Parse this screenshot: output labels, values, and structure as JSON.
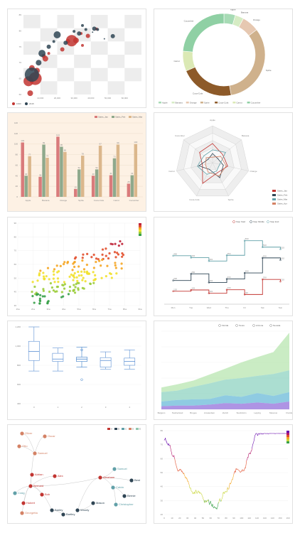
{
  "colors": {
    "red": "#c23531",
    "navy": "#2f4554",
    "teal": "#61a0a8",
    "orange": "#d48265",
    "green": "#91c7ae",
    "olive": "#749f83",
    "tan": "#ca8622",
    "sand": "#bda29a"
  },
  "charts": [
    {
      "id": "bubble",
      "chart_data": {
        "type": "scatter",
        "legend": [
          "1990",
          "2015"
        ],
        "x_ticks": [
          "10,000",
          "20,000",
          "30,000",
          "40,000",
          "50,000",
          "60,000"
        ],
        "y_ticks": [
          "60",
          "65",
          "70",
          "75",
          "80",
          "85"
        ],
        "series": [
          {
            "name": "1990",
            "points": [
              [
                28600,
                77.3,
                8
              ],
              [
                31163,
                77.4,
                4
              ],
              [
                26424,
                77.1,
                3
              ],
              [
                38225,
                79.1,
                3
              ],
              [
                43294,
                81.7,
                2
              ],
              [
                34177,
                80.0,
                2
              ],
              [
                23038,
                74.0,
                3
              ],
              [
                35000,
                75.5,
                2
              ],
              [
                13000,
                70.5,
                4
              ],
              [
                5000,
                67.0,
                4
              ],
              [
                8000,
                66.0,
                4
              ],
              [
                7000,
                63.0,
                9
              ],
              [
                3000,
                62.0,
                7
              ],
              [
                12000,
                71.5,
                3
              ],
              [
                15000,
                72.5,
                2
              ],
              [
                4000,
                57.5,
                4
              ]
            ]
          },
          {
            "name": "2015",
            "points": [
              [
                20000,
                79.5,
                5
              ],
              [
                30000,
                80.8,
                2
              ],
              [
                33000,
                80.0,
                3
              ],
              [
                37000,
                81.5,
                2
              ],
              [
                44000,
                81.5,
                2
              ],
              [
                53000,
                79.0,
                3
              ],
              [
                42000,
                81.8,
                3
              ],
              [
                48000,
                78.0,
                1
              ],
              [
                25000,
                76.5,
                3
              ],
              [
                5000,
                64.5,
                10
              ],
              [
                15000,
                75.0,
                3
              ],
              [
                11000,
                72.5,
                5
              ],
              [
                9000,
                69.0,
                4
              ],
              [
                18000,
                77.0,
                2
              ],
              [
                35000,
                83.0,
                2
              ],
              [
                41000,
                80.5,
                1
              ]
            ]
          }
        ]
      }
    },
    {
      "id": "donut",
      "chart_data": {
        "type": "pie",
        "categories": [
          "Apple",
          "Banana",
          "Orange",
          "Sprite",
          "Coca-Cola",
          "Carrot",
          "Cucumber"
        ],
        "values": [
          4,
          3,
          6,
          29,
          19,
          7,
          21
        ],
        "colors": [
          "#a7dbb5",
          "#d6ecc4",
          "#e6c8b1",
          "#cfb18c",
          "#8d5a29",
          "#dbe9b5",
          "#8fd0a4"
        ]
      }
    },
    {
      "id": "bars",
      "chart_data": {
        "type": "bar",
        "categories": [
          "Apple",
          "Banana",
          "Orange",
          "Sprite",
          "Coca-Cola",
          "Carrot",
          "Cucumber"
        ],
        "series": [
          {
            "name": "Sales_Jan",
            "values": [
              103,
              38,
              114,
              15,
              40,
              41,
              25
            ]
          },
          {
            "name": "Sales_Feb",
            "values": [
              40,
              99,
              95,
              52,
              52,
              73,
              41
            ]
          },
          {
            "name": "Sales_Mar",
            "values": [
              77,
              74,
              85,
              78,
              97,
              99,
              100
            ]
          }
        ],
        "colors": [
          "#d97b7b",
          "#8fa98c",
          "#dbb78c"
        ],
        "ylim": [
          0,
          140
        ],
        "y_ticks": [
          "0",
          "20",
          "40",
          "60",
          "80",
          "100",
          "120",
          "140"
        ]
      }
    },
    {
      "id": "radar",
      "chart_data": {
        "type": "radar",
        "indicators": [
          "Apple",
          "Banana",
          "Orange",
          "Sprite",
          "Coca-Cola",
          "Carrot",
          "Cucumber"
        ],
        "series": [
          {
            "name": "Sales_Jan",
            "values": [
              0.52,
              0.35,
              0.42,
              0.3,
              0.62,
              0.28,
              0.45
            ]
          },
          {
            "name": "Sales_Feb",
            "values": [
              0.25,
              0.18,
              0.3,
              0.45,
              0.2,
              0.38,
              0.15
            ]
          },
          {
            "name": "Sales_Mar",
            "values": [
              0.35,
              0.45,
              0.2,
              0.25,
              0.35,
              0.42,
              0.3
            ]
          },
          {
            "name": "Sales_Apr",
            "values": [
              0.15,
              0.28,
              0.38,
              0.4,
              0.28,
              0.2,
              0.22
            ]
          }
        ],
        "colors": [
          "#c23531",
          "#2f4554",
          "#61a0a8",
          "#d48265"
        ]
      }
    },
    {
      "id": "heat_scatter",
      "chart_data": {
        "type": "scatter",
        "x_ticks": [
          "1ha",
          "2ha",
          "3ha",
          "4ha",
          "5ha",
          "6ha",
          "7ha",
          "8ha",
          "9ha"
        ],
        "y_ticks": [
          "30",
          "40",
          "50",
          "60",
          "70",
          "80",
          "90"
        ]
      }
    },
    {
      "id": "step",
      "chart_data": {
        "type": "line",
        "legend": [
          "Step Start",
          "Step Middle",
          "Step End"
        ],
        "categories": [
          "Mon",
          "Tue",
          "Wed",
          "Thu",
          "Fri",
          "Sat",
          "Sun"
        ],
        "series": [
          {
            "name": "Step Start",
            "values": [
              120,
              132,
              101,
              134,
              90,
              230,
              210
            ]
          },
          {
            "name": "Step Middle",
            "values": [
              220,
              282,
              201,
              234,
              290,
              430,
              410
            ]
          },
          {
            "name": "Step End",
            "values": [
              450,
              432,
              401,
              454,
              590,
              530,
              510
            ]
          }
        ],
        "colors": [
          "#c23531",
          "#2f4554",
          "#61a0a8"
        ]
      }
    },
    {
      "id": "boxplot",
      "chart_data": {
        "type": "boxplot",
        "y_ticks": [
          "400",
          "600",
          "800",
          "1,000",
          "1,200"
        ],
        "categories": [
          "0",
          "1",
          "2",
          "3",
          "4"
        ],
        "series": [
          {
            "name": "expr",
            "values": [
              [
                740,
                850,
                945,
                1050,
                1200
              ],
              [
                740,
                840,
                865,
                925,
                980
              ],
              [
                780,
                840,
                865,
                885,
                990
              ],
              [
                760,
                780,
                850,
                880,
                940
              ],
              [
                760,
                800,
                840,
                875,
                960
              ]
            ]
          }
        ],
        "outliers": [
          [
            2,
            650
          ],
          [
            2,
            960
          ]
        ]
      }
    },
    {
      "id": "stacked_area",
      "chart_data": {
        "type": "area",
        "legend": [
          "Florida",
          "Texas",
          "Arizona",
          "Nevada"
        ],
        "categories": [
          "Belgium",
          "Switzerland",
          "Bruges",
          "Amsterdam",
          "Zurich",
          "Stockholm",
          "Leipzig",
          "Moscow",
          "Florida"
        ],
        "series": [
          {
            "name": "Nevada",
            "values": [
              10,
              12,
              12,
              15,
              20,
              18,
              22,
              18,
              25
            ]
          },
          {
            "name": "Arizona",
            "values": [
              15,
              18,
              20,
              18,
              25,
              22,
              30,
              25,
              30
            ]
          },
          {
            "name": "Texas",
            "values": [
              30,
              30,
              40,
              50,
              50,
              60,
              55,
              70,
              70
            ]
          },
          {
            "name": "Florida",
            "values": [
              15,
              20,
              20,
              28,
              35,
              50,
              60,
              70,
              120
            ]
          }
        ],
        "colors": [
          "#9370db",
          "#6ab9d8",
          "#8fd3c2",
          "#b8e6b0"
        ]
      }
    },
    {
      "id": "tree",
      "chart_data": {
        "type": "graph",
        "legend": [
          "A",
          "B",
          "C",
          "D",
          "E"
        ],
        "nodes": [
          "Oliver",
          "Oscar",
          "Otto",
          "Samuel",
          "Adrian",
          "Alex",
          "Bernard",
          "Craig",
          "Bob",
          "Hubert",
          "Georgetta",
          "Barley",
          "Bartley",
          "Abraham",
          "Samuel",
          "Calvin",
          "Bernie",
          "Christopher",
          "Best",
          "Woody",
          "Mason"
        ]
      }
    },
    {
      "id": "trace",
      "chart_data": {
        "type": "line",
        "y_ticks": [
          "20",
          "30",
          "40",
          "50",
          "60",
          "70",
          "80"
        ],
        "x_ticks": [
          "0",
          "10",
          "20",
          "30",
          "40",
          "50",
          "60",
          "70",
          "80",
          "90",
          "100",
          "110",
          "120",
          "130",
          "140",
          "150",
          "160"
        ]
      }
    }
  ]
}
